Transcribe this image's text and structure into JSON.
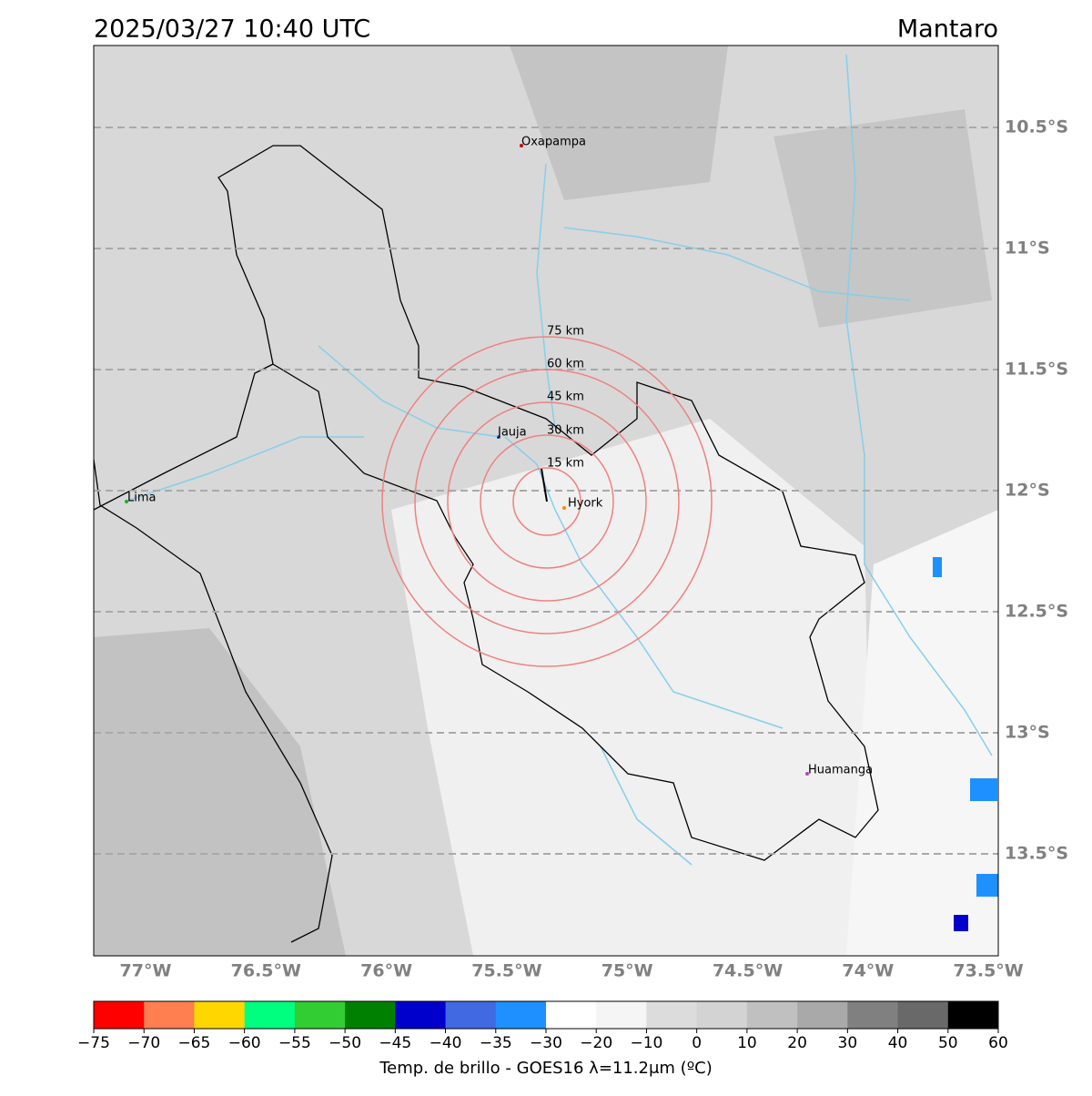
{
  "header": {
    "title": "2025/03/27 10:40 UTC",
    "region": "Mantaro"
  },
  "map": {
    "lat_labels": [
      "10.5°S",
      "11°S",
      "11.5°S",
      "12°S",
      "12.5°S",
      "13°S",
      "13.5°S"
    ],
    "lon_labels": [
      "77°W",
      "76.5°W",
      "76°W",
      "75.5°W",
      "75°W",
      "74.5°W",
      "74°W",
      "73.5°W"
    ],
    "places": [
      "Oxapampa",
      "Jauja",
      "Hyork",
      "Lima",
      "Huamanga"
    ],
    "rings": [
      "15 km",
      "30 km",
      "45 km",
      "60 km",
      "75 km"
    ]
  },
  "colorbar": {
    "ticks": [
      "−75",
      "−70",
      "−65",
      "−60",
      "−55",
      "−50",
      "−45",
      "−40",
      "−35",
      "−30",
      "−20",
      "−10",
      "0",
      "10",
      "20",
      "30",
      "40",
      "50",
      "60"
    ],
    "colors": [
      "#ff0000",
      "#ff7f50",
      "#ffd700",
      "#00ff7f",
      "#32cd32",
      "#008000",
      "#0000cd",
      "#4169e1",
      "#1e90ff",
      "#ffffff",
      "#f5f5f5",
      "#dcdcdc",
      "#d3d3d3",
      "#c0c0c0",
      "#a9a9a9",
      "#808080",
      "#696969",
      "#000000"
    ],
    "label": "Temp. de brillo - GOES16 λ=11.2μm (ºC)"
  }
}
